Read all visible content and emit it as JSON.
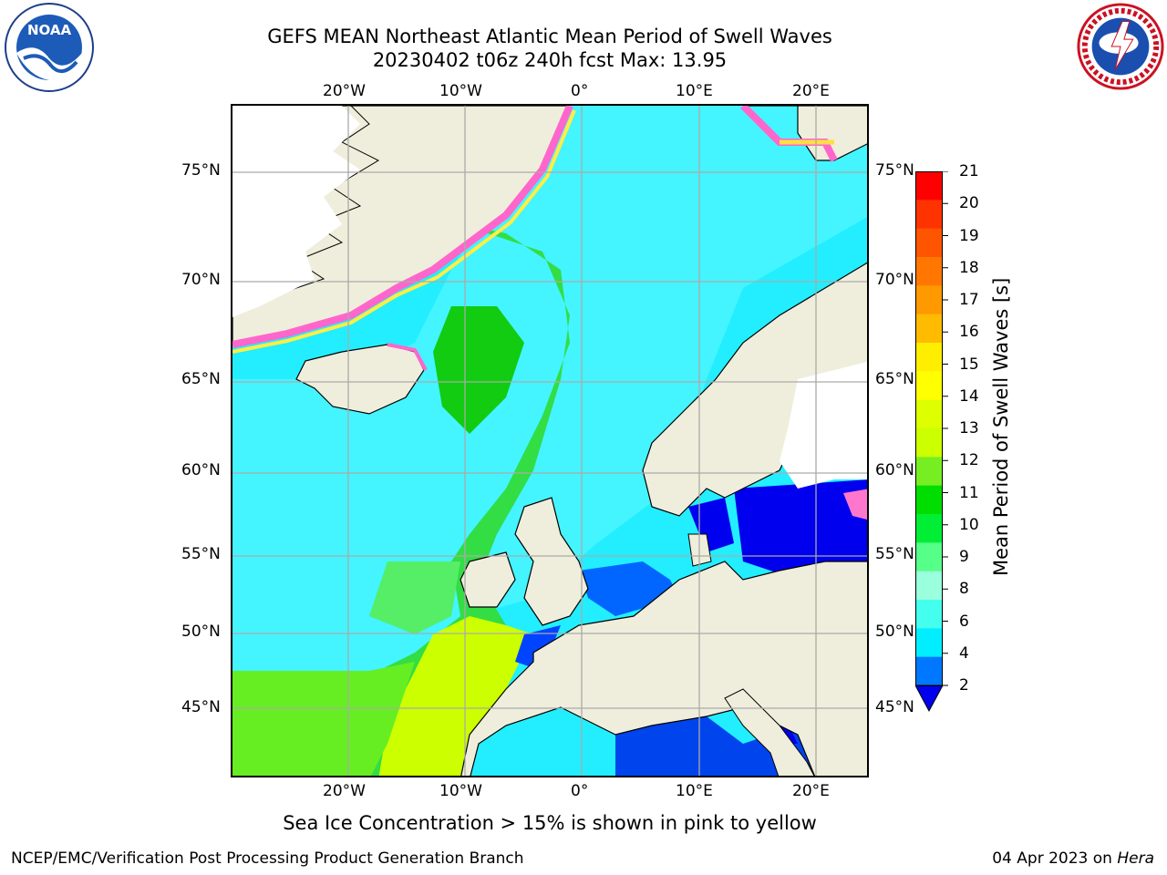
{
  "header": {
    "title_line1": "GEFS MEAN Northeast Atlantic Mean Period of Swell Waves",
    "title_line2": "20230402 t06z 240h fcst   Max: 13.95"
  },
  "logos": {
    "left": "noaa-logo",
    "right": "nws-logo"
  },
  "map": {
    "lon_ticks": [
      "20°W",
      "10°W",
      "0°",
      "10°E",
      "20°E"
    ],
    "lat_ticks_left": [
      "75°N",
      "70°N",
      "65°N",
      "60°N",
      "55°N",
      "50°N",
      "45°N"
    ],
    "lat_ticks_right": [
      "75°N",
      "70°N",
      "65°N",
      "60°N",
      "55°N",
      "50°N",
      "45°N"
    ],
    "grid": true,
    "land_color": "#efeedc",
    "ice_colors": [
      "#ff66cc",
      "#ff99cc",
      "#ffdd44",
      "#ffff66"
    ]
  },
  "colorbar": {
    "label": "Mean Period of Swell Waves [s]",
    "ticks": [
      "21",
      "20",
      "19",
      "18",
      "17",
      "16",
      "15",
      "14",
      "13",
      "12",
      "11",
      "10",
      "9",
      "8",
      "6",
      "4",
      "2"
    ],
    "colors": [
      "#ff0000",
      "#ff3300",
      "#ff5500",
      "#ff7700",
      "#ff9900",
      "#ffbb00",
      "#ffee00",
      "#ffff00",
      "#ddff00",
      "#ccff00",
      "#77ee22",
      "#00dd00",
      "#00ee33",
      "#55ff88",
      "#99ffdd",
      "#44ffee",
      "#00eeff",
      "#0077ff"
    ],
    "under_color": "#0000ee"
  },
  "notes": {
    "ice_note": "Sea Ice Concentration > 15% is shown in pink to yellow"
  },
  "footer": {
    "left": "NCEP/EMC/Verification Post Processing Product Generation Branch",
    "date": "04 Apr 2023 on ",
    "host": "Hera"
  }
}
